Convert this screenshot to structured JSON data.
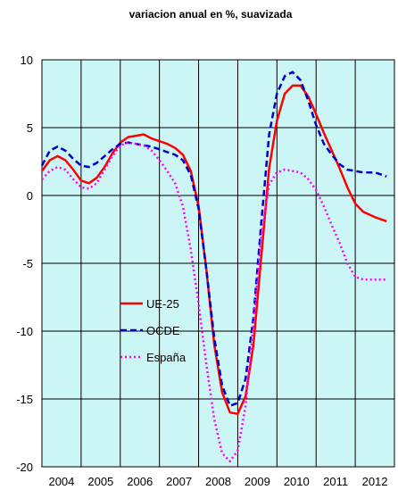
{
  "chart_data": {
    "type": "line",
    "title": "variacion anual en %, suavizada",
    "xlabel": "",
    "ylabel": "",
    "ylim": [
      -20,
      10
    ],
    "xlim": [
      2004,
      2013
    ],
    "yticks": [
      "10",
      "5",
      "0",
      "-5",
      "-10",
      "-15",
      "-20"
    ],
    "ytick_values": [
      10,
      5,
      0,
      -5,
      -10,
      -15,
      -20
    ],
    "xtick_labels": [
      "2004",
      "2005",
      "2006",
      "2007",
      "2008",
      "2009",
      "2010",
      "2011",
      "2012"
    ],
    "grid": true,
    "plot_background": "#ccf5f5",
    "legend_position": "left-center",
    "series": [
      {
        "name": "UE-25",
        "color": "#ff0000",
        "style": "solid",
        "x": [
          2004.0,
          2004.2,
          2004.4,
          2004.6,
          2004.8,
          2005.0,
          2005.2,
          2005.4,
          2005.6,
          2005.8,
          2006.0,
          2006.2,
          2006.4,
          2006.6,
          2006.8,
          2007.0,
          2007.2,
          2007.4,
          2007.6,
          2007.8,
          2008.0,
          2008.2,
          2008.4,
          2008.6,
          2008.8,
          2009.0,
          2009.2,
          2009.4,
          2009.6,
          2009.8,
          2010.0,
          2010.2,
          2010.4,
          2010.6,
          2010.8,
          2011.0,
          2011.2,
          2011.4,
          2011.6,
          2011.8,
          2012.0,
          2012.2,
          2012.5,
          2012.8
        ],
        "y": [
          1.8,
          2.6,
          2.9,
          2.6,
          1.9,
          1.1,
          0.9,
          1.3,
          2.1,
          3.1,
          3.9,
          4.3,
          4.4,
          4.5,
          4.2,
          4.0,
          3.8,
          3.5,
          3.0,
          1.8,
          -0.8,
          -5.5,
          -11.0,
          -14.5,
          -16.0,
          -16.1,
          -14.8,
          -11.0,
          -4.5,
          2.0,
          5.5,
          7.5,
          8.1,
          8.1,
          7.3,
          6.0,
          4.6,
          3.3,
          2.0,
          0.6,
          -0.6,
          -1.2,
          -1.6,
          -1.9
        ]
      },
      {
        "name": "OCDE",
        "color": "#0000cc",
        "style": "dashed",
        "x": [
          2004.0,
          2004.2,
          2004.4,
          2004.6,
          2004.8,
          2005.0,
          2005.2,
          2005.4,
          2005.6,
          2005.8,
          2006.0,
          2006.2,
          2006.4,
          2006.6,
          2006.8,
          2007.0,
          2007.2,
          2007.4,
          2007.6,
          2007.8,
          2008.0,
          2008.2,
          2008.4,
          2008.6,
          2008.8,
          2009.0,
          2009.2,
          2009.4,
          2009.6,
          2009.8,
          2010.0,
          2010.2,
          2010.4,
          2010.6,
          2010.8,
          2011.0,
          2011.2,
          2011.4,
          2011.6,
          2011.8,
          2012.0,
          2012.2,
          2012.5,
          2012.8
        ],
        "y": [
          2.2,
          3.3,
          3.6,
          3.3,
          2.7,
          2.2,
          2.1,
          2.4,
          2.9,
          3.4,
          3.8,
          3.9,
          3.8,
          3.7,
          3.6,
          3.4,
          3.2,
          3.0,
          2.6,
          1.5,
          -1.0,
          -5.5,
          -10.5,
          -14.0,
          -15.5,
          -15.3,
          -13.5,
          -9.0,
          -2.0,
          4.5,
          7.5,
          8.8,
          9.1,
          8.5,
          7.0,
          5.2,
          3.8,
          3.0,
          2.3,
          1.9,
          1.8,
          1.7,
          1.7,
          1.4
        ]
      },
      {
        "name": "España",
        "color": "#ff00ff",
        "style": "dotted",
        "x": [
          2004.0,
          2004.2,
          2004.4,
          2004.6,
          2004.8,
          2005.0,
          2005.2,
          2005.4,
          2005.6,
          2005.8,
          2006.0,
          2006.2,
          2006.4,
          2006.6,
          2006.8,
          2007.0,
          2007.2,
          2007.4,
          2007.6,
          2007.8,
          2008.0,
          2008.2,
          2008.4,
          2008.6,
          2008.8,
          2009.0,
          2009.2,
          2009.4,
          2009.6,
          2009.8,
          2010.0,
          2010.2,
          2010.4,
          2010.6,
          2010.8,
          2011.0,
          2011.2,
          2011.4,
          2011.6,
          2011.8,
          2012.0,
          2012.2,
          2012.5,
          2012.8
        ],
        "y": [
          1.2,
          1.8,
          2.1,
          1.9,
          1.2,
          0.6,
          0.5,
          0.9,
          1.9,
          2.9,
          3.7,
          3.9,
          3.8,
          3.7,
          3.3,
          2.6,
          1.8,
          0.9,
          -0.8,
          -4.0,
          -8.0,
          -12.5,
          -16.5,
          -19.0,
          -19.6,
          -18.8,
          -15.5,
          -9.5,
          -3.0,
          0.8,
          1.7,
          1.9,
          1.8,
          1.7,
          1.2,
          0.4,
          -0.8,
          -2.2,
          -3.5,
          -5.0,
          -6.0,
          -6.2,
          -6.2,
          -6.2
        ]
      }
    ]
  }
}
